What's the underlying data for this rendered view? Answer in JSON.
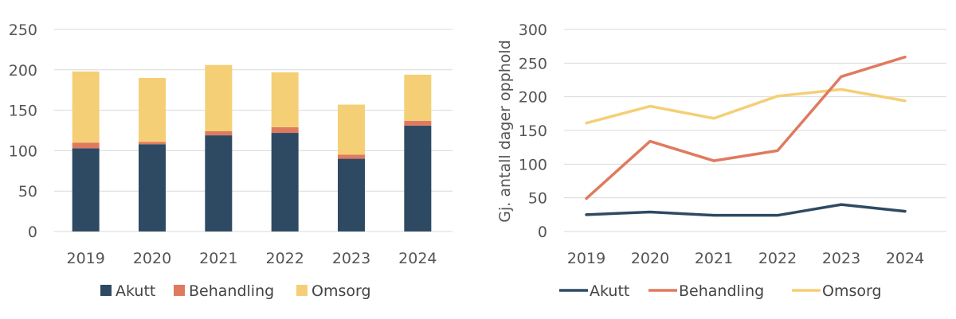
{
  "chart_data": [
    {
      "type": "bar",
      "stacked": true,
      "categories": [
        "2019",
        "2020",
        "2021",
        "2022",
        "2023",
        "2024"
      ],
      "yticks": [
        "0",
        "50",
        "100",
        "150",
        "200",
        "250"
      ],
      "ylim": [
        0,
        250
      ],
      "grid": true,
      "legend_position": "bottom",
      "series": [
        {
          "name": "Akutt",
          "color": "#2e4a63",
          "values": [
            103,
            108,
            119,
            122,
            90,
            131
          ]
        },
        {
          "name": "Behandling",
          "color": "#e07a5f",
          "values": [
            7,
            3,
            5,
            7,
            5,
            6
          ]
        },
        {
          "name": "Omsorg",
          "color": "#f5cf76",
          "values": [
            88,
            79,
            82,
            68,
            62,
            57
          ]
        }
      ]
    },
    {
      "type": "line",
      "categories": [
        "2019",
        "2020",
        "2021",
        "2022",
        "2023",
        "2024"
      ],
      "yticks": [
        "0",
        "50",
        "100",
        "150",
        "200",
        "250",
        "300"
      ],
      "ylim": [
        0,
        300
      ],
      "ylabel": "Gj. antall dager opphold",
      "grid": true,
      "legend_position": "bottom",
      "series": [
        {
          "name": "Akutt",
          "color": "#2e4a63",
          "values": [
            25,
            29,
            24,
            24,
            40,
            30
          ]
        },
        {
          "name": "Behandling",
          "color": "#e07a5f",
          "values": [
            49,
            134,
            105,
            120,
            230,
            259
          ]
        },
        {
          "name": "Omsorg",
          "color": "#f5cf76",
          "values": [
            161,
            186,
            168,
            201,
            211,
            194
          ]
        }
      ]
    }
  ]
}
